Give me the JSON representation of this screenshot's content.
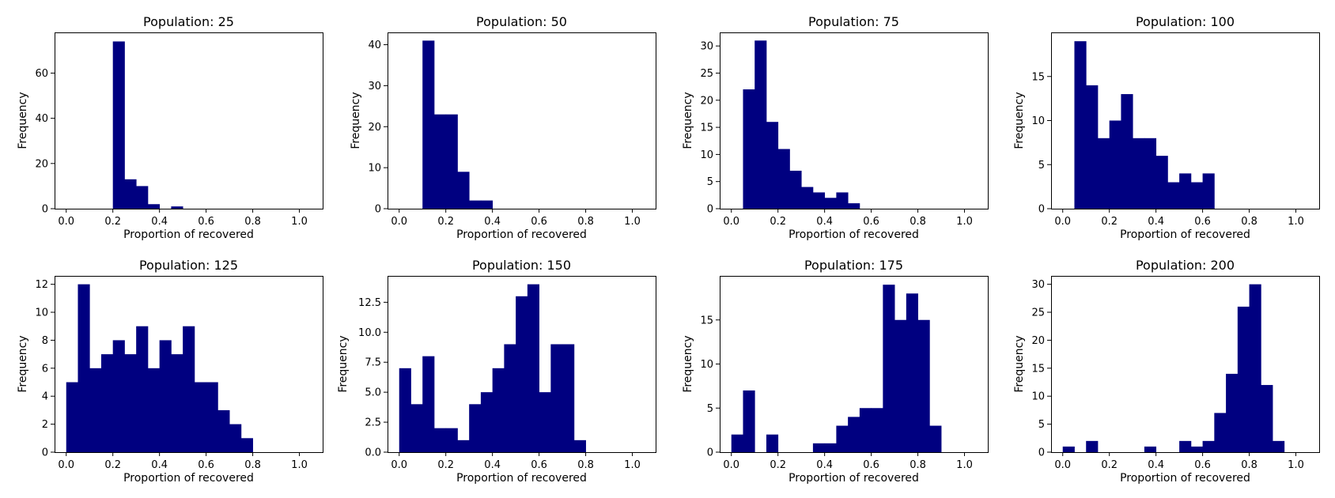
{
  "figure": {
    "background": "#ffffff"
  },
  "bar_color": "#000080",
  "chart_data": [
    {
      "type": "bar",
      "title": "Population: 25",
      "xlabel": "Proportion of recovered",
      "ylabel": "Frequency",
      "xlim": [
        -0.05,
        1.1
      ],
      "ylim": [
        0,
        78
      ],
      "xticks": [
        0.0,
        0.2,
        0.4,
        0.6,
        0.8,
        1.0
      ],
      "xtick_labels": [
        "0.0",
        "0.2",
        "0.4",
        "0.6",
        "0.8",
        "1.0"
      ],
      "yticks": [
        0,
        20,
        40,
        60
      ],
      "ytick_labels": [
        "0",
        "20",
        "40",
        "60"
      ],
      "bins": [
        {
          "x0": 0.2,
          "x1": 0.25,
          "value": 74
        },
        {
          "x0": 0.25,
          "x1": 0.3,
          "value": 13
        },
        {
          "x0": 0.3,
          "x1": 0.35,
          "value": 10
        },
        {
          "x0": 0.35,
          "x1": 0.4,
          "value": 2
        },
        {
          "x0": 0.4,
          "x1": 0.45,
          "value": 0
        },
        {
          "x0": 0.45,
          "x1": 0.5,
          "value": 1
        }
      ]
    },
    {
      "type": "bar",
      "title": "Population: 50",
      "xlabel": "Proportion of recovered",
      "ylabel": "Frequency",
      "xlim": [
        -0.05,
        1.1
      ],
      "ylim": [
        0,
        43
      ],
      "xticks": [
        0.0,
        0.2,
        0.4,
        0.6,
        0.8,
        1.0
      ],
      "xtick_labels": [
        "0.0",
        "0.2",
        "0.4",
        "0.6",
        "0.8",
        "1.0"
      ],
      "yticks": [
        0,
        10,
        20,
        30,
        40
      ],
      "ytick_labels": [
        "0",
        "10",
        "20",
        "30",
        "40"
      ],
      "bins": [
        {
          "x0": 0.1,
          "x1": 0.15,
          "value": 41
        },
        {
          "x0": 0.15,
          "x1": 0.2,
          "value": 23
        },
        {
          "x0": 0.2,
          "x1": 0.25,
          "value": 23
        },
        {
          "x0": 0.25,
          "x1": 0.3,
          "value": 9
        },
        {
          "x0": 0.3,
          "x1": 0.35,
          "value": 2
        },
        {
          "x0": 0.35,
          "x1": 0.4,
          "value": 2
        }
      ]
    },
    {
      "type": "bar",
      "title": "Population: 75",
      "xlabel": "Proportion of recovered",
      "ylabel": "Frequency",
      "xlim": [
        -0.05,
        1.1
      ],
      "ylim": [
        0,
        32.5
      ],
      "xticks": [
        0.0,
        0.2,
        0.4,
        0.6,
        0.8,
        1.0
      ],
      "xtick_labels": [
        "0.0",
        "0.2",
        "0.4",
        "0.6",
        "0.8",
        "1.0"
      ],
      "yticks": [
        0,
        5,
        10,
        15,
        20,
        25,
        30
      ],
      "ytick_labels": [
        "0",
        "5",
        "10",
        "15",
        "20",
        "25",
        "30"
      ],
      "bins": [
        {
          "x0": 0.05,
          "x1": 0.1,
          "value": 22
        },
        {
          "x0": 0.1,
          "x1": 0.15,
          "value": 31
        },
        {
          "x0": 0.15,
          "x1": 0.2,
          "value": 16
        },
        {
          "x0": 0.2,
          "x1": 0.25,
          "value": 11
        },
        {
          "x0": 0.25,
          "x1": 0.3,
          "value": 7
        },
        {
          "x0": 0.3,
          "x1": 0.35,
          "value": 4
        },
        {
          "x0": 0.35,
          "x1": 0.4,
          "value": 3
        },
        {
          "x0": 0.4,
          "x1": 0.45,
          "value": 2
        },
        {
          "x0": 0.45,
          "x1": 0.5,
          "value": 3
        },
        {
          "x0": 0.5,
          "x1": 0.55,
          "value": 1
        }
      ]
    },
    {
      "type": "bar",
      "title": "Population: 100",
      "xlabel": "Proportion of recovered",
      "ylabel": "Frequency",
      "xlim": [
        -0.05,
        1.1
      ],
      "ylim": [
        0,
        20
      ],
      "xticks": [
        0.0,
        0.2,
        0.4,
        0.6,
        0.8,
        1.0
      ],
      "xtick_labels": [
        "0.0",
        "0.2",
        "0.4",
        "0.6",
        "0.8",
        "1.0"
      ],
      "yticks": [
        0,
        5,
        10,
        15
      ],
      "ytick_labels": [
        "0",
        "5",
        "10",
        "15"
      ],
      "bins": [
        {
          "x0": 0.05,
          "x1": 0.1,
          "value": 19
        },
        {
          "x0": 0.1,
          "x1": 0.15,
          "value": 14
        },
        {
          "x0": 0.15,
          "x1": 0.2,
          "value": 8
        },
        {
          "x0": 0.2,
          "x1": 0.25,
          "value": 10
        },
        {
          "x0": 0.25,
          "x1": 0.3,
          "value": 13
        },
        {
          "x0": 0.3,
          "x1": 0.35,
          "value": 8
        },
        {
          "x0": 0.35,
          "x1": 0.4,
          "value": 8
        },
        {
          "x0": 0.4,
          "x1": 0.45,
          "value": 6
        },
        {
          "x0": 0.45,
          "x1": 0.5,
          "value": 3
        },
        {
          "x0": 0.5,
          "x1": 0.55,
          "value": 4
        },
        {
          "x0": 0.55,
          "x1": 0.6,
          "value": 3
        },
        {
          "x0": 0.6,
          "x1": 0.65,
          "value": 4
        }
      ]
    },
    {
      "type": "bar",
      "title": "Population: 125",
      "xlabel": "Proportion of recovered",
      "ylabel": "Frequency",
      "xlim": [
        -0.05,
        1.1
      ],
      "ylim": [
        0,
        12.6
      ],
      "xticks": [
        0.0,
        0.2,
        0.4,
        0.6,
        0.8,
        1.0
      ],
      "xtick_labels": [
        "0.0",
        "0.2",
        "0.4",
        "0.6",
        "0.8",
        "1.0"
      ],
      "yticks": [
        0,
        2,
        4,
        6,
        8,
        10,
        12
      ],
      "ytick_labels": [
        "0",
        "2",
        "4",
        "6",
        "8",
        "10",
        "12"
      ],
      "bins": [
        {
          "x0": 0.0,
          "x1": 0.05,
          "value": 5
        },
        {
          "x0": 0.05,
          "x1": 0.1,
          "value": 12
        },
        {
          "x0": 0.1,
          "x1": 0.15,
          "value": 6
        },
        {
          "x0": 0.15,
          "x1": 0.2,
          "value": 7
        },
        {
          "x0": 0.2,
          "x1": 0.25,
          "value": 8
        },
        {
          "x0": 0.25,
          "x1": 0.3,
          "value": 7
        },
        {
          "x0": 0.3,
          "x1": 0.35,
          "value": 9
        },
        {
          "x0": 0.35,
          "x1": 0.4,
          "value": 6
        },
        {
          "x0": 0.4,
          "x1": 0.45,
          "value": 8
        },
        {
          "x0": 0.45,
          "x1": 0.5,
          "value": 7
        },
        {
          "x0": 0.5,
          "x1": 0.55,
          "value": 9
        },
        {
          "x0": 0.55,
          "x1": 0.6,
          "value": 5
        },
        {
          "x0": 0.6,
          "x1": 0.65,
          "value": 5
        },
        {
          "x0": 0.65,
          "x1": 0.7,
          "value": 3
        },
        {
          "x0": 0.7,
          "x1": 0.75,
          "value": 2
        },
        {
          "x0": 0.75,
          "x1": 0.8,
          "value": 1
        }
      ]
    },
    {
      "type": "bar",
      "title": "Population: 150",
      "xlabel": "Proportion of recovered",
      "ylabel": "Frequency",
      "xlim": [
        -0.05,
        1.1
      ],
      "ylim": [
        0,
        14.7
      ],
      "xticks": [
        0.0,
        0.2,
        0.4,
        0.6,
        0.8,
        1.0
      ],
      "xtick_labels": [
        "0.0",
        "0.2",
        "0.4",
        "0.6",
        "0.8",
        "1.0"
      ],
      "yticks": [
        0,
        2.5,
        5,
        7.5,
        10,
        12.5
      ],
      "ytick_labels": [
        "0.0",
        "2.5",
        "5.0",
        "7.5",
        "10.0",
        "12.5"
      ],
      "bins": [
        {
          "x0": 0.0,
          "x1": 0.05,
          "value": 7
        },
        {
          "x0": 0.05,
          "x1": 0.1,
          "value": 4
        },
        {
          "x0": 0.1,
          "x1": 0.15,
          "value": 8
        },
        {
          "x0": 0.15,
          "x1": 0.2,
          "value": 2
        },
        {
          "x0": 0.2,
          "x1": 0.25,
          "value": 2
        },
        {
          "x0": 0.25,
          "x1": 0.3,
          "value": 1
        },
        {
          "x0": 0.3,
          "x1": 0.35,
          "value": 4
        },
        {
          "x0": 0.35,
          "x1": 0.4,
          "value": 5
        },
        {
          "x0": 0.4,
          "x1": 0.45,
          "value": 7
        },
        {
          "x0": 0.45,
          "x1": 0.5,
          "value": 9
        },
        {
          "x0": 0.5,
          "x1": 0.55,
          "value": 13
        },
        {
          "x0": 0.55,
          "x1": 0.6,
          "value": 14
        },
        {
          "x0": 0.6,
          "x1": 0.65,
          "value": 5
        },
        {
          "x0": 0.65,
          "x1": 0.7,
          "value": 9
        },
        {
          "x0": 0.7,
          "x1": 0.75,
          "value": 9
        },
        {
          "x0": 0.75,
          "x1": 0.8,
          "value": 1
        }
      ]
    },
    {
      "type": "bar",
      "title": "Population: 175",
      "xlabel": "Proportion of recovered",
      "ylabel": "Frequency",
      "xlim": [
        -0.05,
        1.1
      ],
      "ylim": [
        0,
        20
      ],
      "xticks": [
        0.0,
        0.2,
        0.4,
        0.6,
        0.8,
        1.0
      ],
      "xtick_labels": [
        "0.0",
        "0.2",
        "0.4",
        "0.6",
        "0.8",
        "1.0"
      ],
      "yticks": [
        0,
        5,
        10,
        15
      ],
      "ytick_labels": [
        "0",
        "5",
        "10",
        "15"
      ],
      "bins": [
        {
          "x0": 0.0,
          "x1": 0.05,
          "value": 2
        },
        {
          "x0": 0.05,
          "x1": 0.1,
          "value": 7
        },
        {
          "x0": 0.15,
          "x1": 0.2,
          "value": 2
        },
        {
          "x0": 0.35,
          "x1": 0.4,
          "value": 1
        },
        {
          "x0": 0.4,
          "x1": 0.45,
          "value": 1
        },
        {
          "x0": 0.45,
          "x1": 0.5,
          "value": 3
        },
        {
          "x0": 0.5,
          "x1": 0.55,
          "value": 4
        },
        {
          "x0": 0.55,
          "x1": 0.6,
          "value": 5
        },
        {
          "x0": 0.6,
          "x1": 0.65,
          "value": 5
        },
        {
          "x0": 0.65,
          "x1": 0.7,
          "value": 19
        },
        {
          "x0": 0.7,
          "x1": 0.75,
          "value": 15
        },
        {
          "x0": 0.75,
          "x1": 0.8,
          "value": 18
        },
        {
          "x0": 0.8,
          "x1": 0.85,
          "value": 15
        },
        {
          "x0": 0.85,
          "x1": 0.9,
          "value": 3
        }
      ]
    },
    {
      "type": "bar",
      "title": "Population: 200",
      "xlabel": "Proportion of recovered",
      "ylabel": "Frequency",
      "xlim": [
        -0.05,
        1.1
      ],
      "ylim": [
        0,
        31.5
      ],
      "xticks": [
        0.0,
        0.2,
        0.4,
        0.6,
        0.8,
        1.0
      ],
      "xtick_labels": [
        "0.0",
        "0.2",
        "0.4",
        "0.6",
        "0.8",
        "1.0"
      ],
      "yticks": [
        0,
        5,
        10,
        15,
        20,
        25,
        30
      ],
      "ytick_labels": [
        "0",
        "5",
        "10",
        "15",
        "20",
        "25",
        "30"
      ],
      "bins": [
        {
          "x0": 0.0,
          "x1": 0.05,
          "value": 1
        },
        {
          "x0": 0.1,
          "x1": 0.15,
          "value": 2
        },
        {
          "x0": 0.35,
          "x1": 0.4,
          "value": 1
        },
        {
          "x0": 0.5,
          "x1": 0.55,
          "value": 2
        },
        {
          "x0": 0.55,
          "x1": 0.6,
          "value": 1
        },
        {
          "x0": 0.6,
          "x1": 0.65,
          "value": 2
        },
        {
          "x0": 0.65,
          "x1": 0.7,
          "value": 7
        },
        {
          "x0": 0.7,
          "x1": 0.75,
          "value": 14
        },
        {
          "x0": 0.75,
          "x1": 0.8,
          "value": 26
        },
        {
          "x0": 0.8,
          "x1": 0.85,
          "value": 30
        },
        {
          "x0": 0.85,
          "x1": 0.9,
          "value": 12
        },
        {
          "x0": 0.9,
          "x1": 0.95,
          "value": 2
        }
      ]
    }
  ]
}
